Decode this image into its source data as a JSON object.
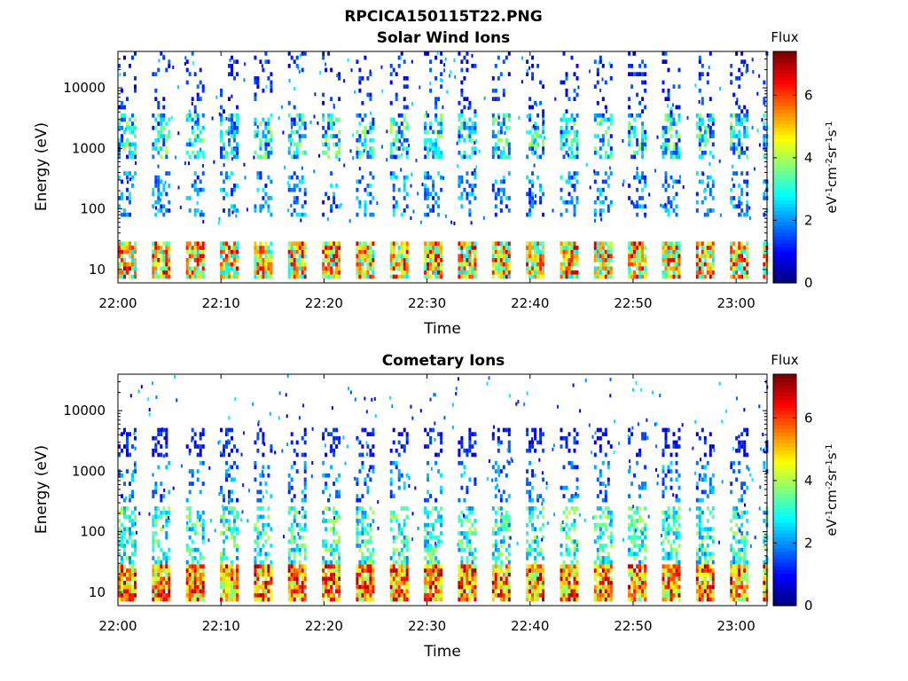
{
  "figure_title": "RPCICA150115T22.PNG",
  "chart_data": [
    {
      "type": "heatmap",
      "title": "Solar Wind Ions",
      "xlabel": "Time",
      "ylabel": "Energy (eV)",
      "x_ticks": [
        "22:00",
        "22:10",
        "22:20",
        "22:30",
        "22:40",
        "22:50",
        "23:00"
      ],
      "x_tick_minutes": [
        0,
        10,
        20,
        30,
        40,
        50,
        60
      ],
      "xlim_minutes": [
        0,
        63
      ],
      "y_scale": "log",
      "y_ticks": [
        "10",
        "100",
        "1000",
        "10000"
      ],
      "y_tick_values": [
        10,
        100,
        1000,
        10000
      ],
      "ylim": [
        6,
        40000
      ],
      "colorbar_label": "Flux",
      "colorbar_unit": "eV-1cm-2sr-1s-1",
      "colorbar_ticks": [
        "0",
        "2",
        "4",
        "6"
      ],
      "colorbar_tick_values": [
        0,
        2,
        4,
        6
      ],
      "clim": [
        0,
        7.4
      ],
      "colormap": "jet",
      "sweep_start_minutes": [
        0,
        3.3,
        6.6,
        9.9,
        13.2,
        16.5,
        19.8,
        23.1,
        26.4,
        29.7,
        33.0,
        36.3,
        39.6,
        42.9,
        46.2,
        49.5,
        52.8,
        56.1,
        59.4,
        62.6
      ],
      "sweep_width_minutes": 0.9,
      "bands": [
        {
          "emin": 7,
          "emax": 30,
          "flux_min": 2.5,
          "flux_max": 7.0,
          "density": 0.9
        },
        {
          "emin": 700,
          "emax": 3500,
          "flux_min": 1.0,
          "flux_max": 4.2,
          "density": 0.55
        },
        {
          "emin": 80,
          "emax": 400,
          "flux_min": 1.0,
          "flux_max": 2.8,
          "density": 0.3
        },
        {
          "emin": 3500,
          "emax": 40000,
          "flux_min": 0.6,
          "flux_max": 1.8,
          "density": 0.15
        }
      ]
    },
    {
      "type": "heatmap",
      "title": "Cometary Ions",
      "xlabel": "Time",
      "ylabel": "Energy (eV)",
      "x_ticks": [
        "22:00",
        "22:10",
        "22:20",
        "22:30",
        "22:40",
        "22:50",
        "23:00"
      ],
      "x_tick_minutes": [
        0,
        10,
        20,
        30,
        40,
        50,
        60
      ],
      "xlim_minutes": [
        0,
        63
      ],
      "y_scale": "log",
      "y_ticks": [
        "10",
        "100",
        "1000",
        "10000"
      ],
      "y_tick_values": [
        10,
        100,
        1000,
        10000
      ],
      "ylim": [
        6,
        40000
      ],
      "colorbar_label": "Flux",
      "colorbar_unit": "eV-1cm-2sr-1s-1",
      "colorbar_ticks": [
        "0",
        "2",
        "4",
        "6"
      ],
      "colorbar_tick_values": [
        0,
        2,
        4,
        6
      ],
      "clim": [
        0,
        7.4
      ],
      "colormap": "jet",
      "sweep_start_minutes": [
        0,
        3.3,
        6.6,
        9.9,
        13.2,
        16.5,
        19.8,
        23.1,
        26.4,
        29.7,
        33.0,
        36.3,
        39.6,
        42.9,
        46.2,
        49.5,
        52.8,
        56.1,
        59.4,
        62.6
      ],
      "sweep_width_minutes": 0.9,
      "bands": [
        {
          "emin": 7,
          "emax": 30,
          "flux_min": 3.5,
          "flux_max": 7.2,
          "density": 0.95
        },
        {
          "emin": 30,
          "emax": 250,
          "flux_min": 1.8,
          "flux_max": 4.2,
          "density": 0.5
        },
        {
          "emin": 1800,
          "emax": 5000,
          "flux_min": 0.5,
          "flux_max": 1.6,
          "density": 0.35
        },
        {
          "emin": 300,
          "emax": 1500,
          "flux_min": 1.0,
          "flux_max": 2.6,
          "density": 0.25
        }
      ]
    }
  ]
}
